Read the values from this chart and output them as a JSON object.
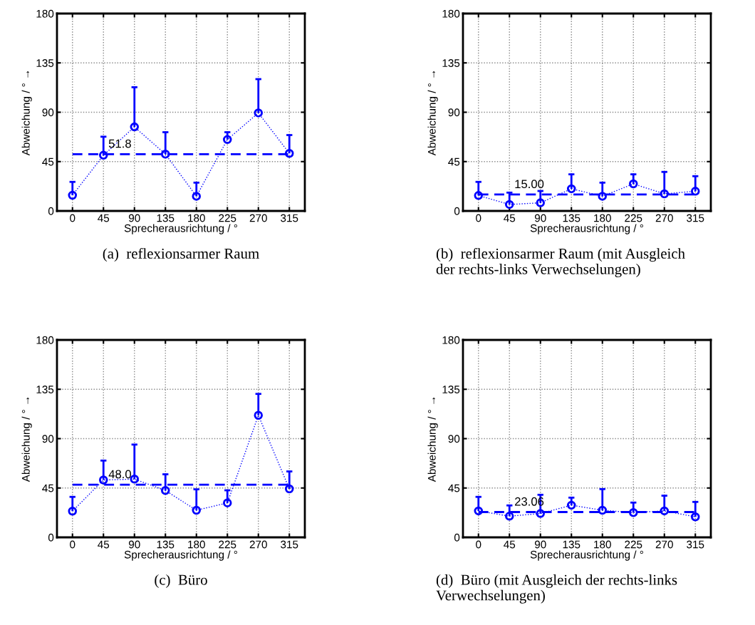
{
  "chart_data": [
    {
      "type": "line",
      "title": "(a)  reflexionsarmer Raum",
      "xlabel": "Sprecherausrichtung / °",
      "ylabel": "Abweichung / ° →",
      "x": [
        0,
        45,
        90,
        135,
        180,
        225,
        270,
        315
      ],
      "xlim": [
        -22.5,
        337.5
      ],
      "xticks": [
        0,
        45,
        90,
        135,
        180,
        225,
        270,
        315
      ],
      "ylim": [
        0,
        180
      ],
      "yticks": [
        0,
        45,
        90,
        135,
        180
      ],
      "grid": true,
      "marker": "circle",
      "line_style": "dotted",
      "series": [
        {
          "color": "#0000ff",
          "values": [
            14.3,
            50.8,
            76.6,
            51.8,
            13.4,
            65.1,
            89.4,
            52.5
          ],
          "errors": [
            [
              14.3,
              26.5
            ],
            [
              50.8,
              67.7
            ],
            [
              76.6,
              112.8
            ],
            [
              51.8,
              71.8
            ],
            [
              13.4,
              25.8
            ],
            [
              65.1,
              71.8
            ],
            [
              89.4,
              120.2
            ],
            [
              52.5,
              69.2
            ]
          ]
        }
      ],
      "ref_lines": [
        {
          "axis": "y",
          "value": 51.8,
          "label": "51.8",
          "color": "#0000ff",
          "line_style": "dashed"
        }
      ]
    },
    {
      "type": "line",
      "title": "(b)  reflexionsarmer Raum (mit Ausgleich\nder rechts-links Verwechselungen)",
      "xlabel": "Sprecherausrichtung / °",
      "ylabel": "Abweichung / ° →",
      "x": [
        0,
        45,
        90,
        135,
        180,
        225,
        270,
        315
      ],
      "xlim": [
        -22.5,
        337.5
      ],
      "xticks": [
        0,
        45,
        90,
        135,
        180,
        225,
        270,
        315
      ],
      "ylim": [
        0,
        180
      ],
      "yticks": [
        0,
        45,
        90,
        135,
        180
      ],
      "grid": true,
      "marker": "circle",
      "line_style": "dotted",
      "series": [
        {
          "color": "#0000ff",
          "values": [
            14.1,
            5.9,
            7.4,
            20.2,
            13.4,
            24.7,
            15.6,
            18.0
          ],
          "errors": [
            [
              14.1,
              26.5
            ],
            [
              5.9,
              16.7
            ],
            [
              7.4,
              18.2
            ],
            [
              20.2,
              33.4
            ],
            [
              13.4,
              25.8
            ],
            [
              24.7,
              33.4
            ],
            [
              15.6,
              35.6
            ],
            [
              18.0,
              31.7
            ]
          ]
        }
      ],
      "ref_lines": [
        {
          "axis": "y",
          "value": 15.0,
          "label": "15.00",
          "color": "#0000ff",
          "line_style": "dashed"
        }
      ]
    },
    {
      "type": "line",
      "title": "(c)  Büro",
      "xlabel": "Sprecherausrichtung / °",
      "ylabel": "Abweichung / ° →",
      "x": [
        0,
        45,
        90,
        135,
        180,
        225,
        270,
        315
      ],
      "xlim": [
        -22.5,
        337.5
      ],
      "xticks": [
        0,
        45,
        90,
        135,
        180,
        225,
        270,
        315
      ],
      "ylim": [
        0,
        180
      ],
      "yticks": [
        0,
        45,
        90,
        135,
        180
      ],
      "grid": true,
      "marker": "circle",
      "line_style": "dotted",
      "series": [
        {
          "color": "#0000ff",
          "values": [
            23.9,
            52.3,
            53.1,
            42.7,
            24.7,
            31.4,
            111.3,
            44.2
          ],
          "errors": [
            [
              23.9,
              36.9
            ],
            [
              52.3,
              70.0
            ],
            [
              53.1,
              84.6
            ],
            [
              42.7,
              57.5
            ],
            [
              24.7,
              43.8
            ],
            [
              31.4,
              42.9
            ],
            [
              111.3,
              130.8
            ],
            [
              44.2,
              60.1
            ]
          ]
        }
      ],
      "ref_lines": [
        {
          "axis": "y",
          "value": 48.0,
          "label": "48.0",
          "color": "#0000ff",
          "line_style": "dashed"
        }
      ]
    },
    {
      "type": "line",
      "title": "(d)  Büro (mit Ausgleich der rechts-links\nVerwechselungen)",
      "xlabel": "Sprecherausrichtung / °",
      "ylabel": "Abweichung / ° →",
      "x": [
        0,
        45,
        90,
        135,
        180,
        225,
        270,
        315
      ],
      "xlim": [
        -22.5,
        337.5
      ],
      "xticks": [
        0,
        45,
        90,
        135,
        180,
        225,
        270,
        315
      ],
      "ylim": [
        0,
        180
      ],
      "yticks": [
        0,
        45,
        90,
        135,
        180
      ],
      "grid": true,
      "marker": "circle",
      "line_style": "dotted",
      "series": [
        {
          "color": "#0000ff",
          "values": [
            24.1,
            19.3,
            21.7,
            29.3,
            24.7,
            22.6,
            24.1,
            18.7
          ],
          "errors": [
            [
              24.1,
              36.9
            ],
            [
              19.3,
              29.1
            ],
            [
              21.7,
              38.8
            ],
            [
              29.3,
              36.2
            ],
            [
              24.7,
              44.0
            ],
            [
              22.6,
              31.7
            ],
            [
              24.1,
              38.0
            ],
            [
              18.7,
              32.3
            ]
          ]
        }
      ],
      "ref_lines": [
        {
          "axis": "y",
          "value": 23.06,
          "label": "23.06",
          "color": "#0000ff",
          "line_style": "dashed"
        }
      ]
    }
  ]
}
